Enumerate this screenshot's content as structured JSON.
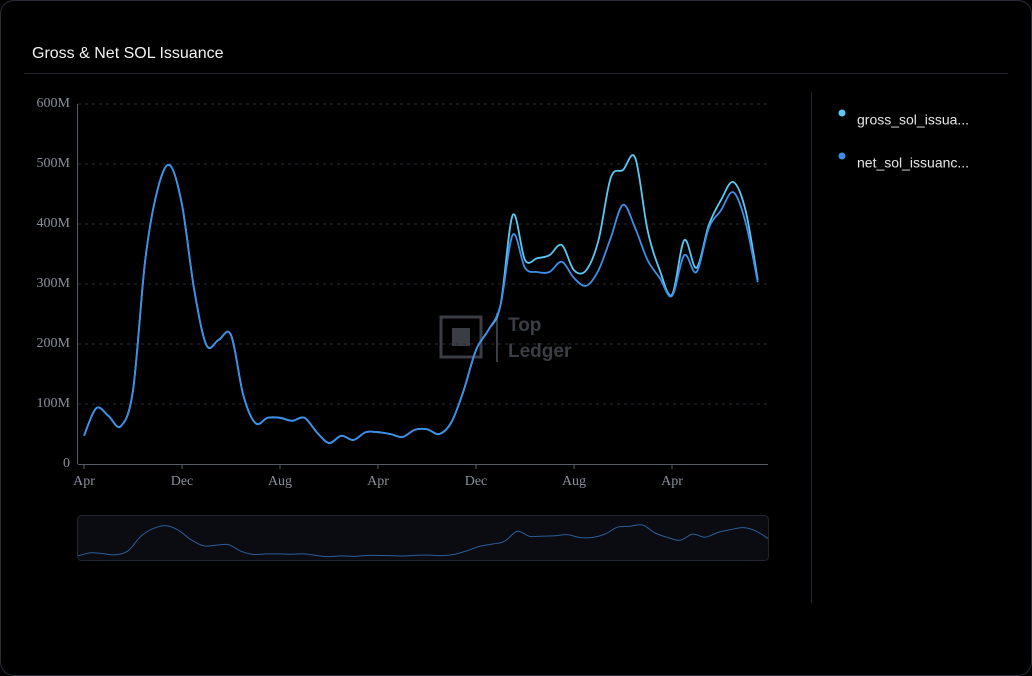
{
  "title": "Gross & Net SOL Issuance",
  "watermark": [
    "Top",
    "Ledger"
  ],
  "chart_data": {
    "type": "line",
    "categories": [
      "Apr",
      null,
      null,
      null,
      null,
      null,
      null,
      null,
      "Dec",
      null,
      null,
      null,
      null,
      null,
      null,
      null,
      "Aug",
      null,
      null,
      null,
      null,
      null,
      null,
      null,
      "Apr",
      null,
      null,
      null,
      null,
      null,
      null,
      null,
      "Dec",
      null,
      null,
      null,
      null,
      null,
      null,
      null,
      "Aug",
      null,
      null,
      null,
      null,
      null,
      null,
      null,
      "Apr",
      null,
      null,
      null,
      null,
      null,
      null,
      null
    ],
    "series": [
      {
        "name": "gross_sol_issua...",
        "color": "#5cc8f2",
        "values": [
          47000000,
          93000000,
          80000000,
          63000000,
          123000000,
          340000000,
          457000000,
          498000000,
          432000000,
          290000000,
          198000000,
          207000000,
          215000000,
          115000000,
          68000000,
          77000000,
          77000000,
          72000000,
          77000000,
          53000000,
          35000000,
          47000000,
          40000000,
          53000000,
          53000000,
          50000000,
          45000000,
          57000000,
          58000000,
          50000000,
          70000000,
          123000000,
          190000000,
          223000000,
          265000000,
          415000000,
          340000000,
          343000000,
          348000000,
          365000000,
          323000000,
          323000000,
          373000000,
          477000000,
          490000000,
          510000000,
          390000000,
          323000000,
          282000000,
          373000000,
          327000000,
          398000000,
          440000000,
          470000000,
          423000000,
          307000000
        ]
      },
      {
        "name": "net_sol_issuanc...",
        "color": "#3d8ee8",
        "values": [
          47000000,
          93000000,
          80000000,
          63000000,
          123000000,
          340000000,
          457000000,
          498000000,
          432000000,
          290000000,
          198000000,
          207000000,
          215000000,
          115000000,
          68000000,
          77000000,
          77000000,
          72000000,
          77000000,
          53000000,
          35000000,
          47000000,
          40000000,
          53000000,
          53000000,
          50000000,
          45000000,
          57000000,
          58000000,
          50000000,
          70000000,
          123000000,
          190000000,
          223000000,
          265000000,
          382000000,
          327000000,
          320000000,
          320000000,
          337000000,
          310000000,
          297000000,
          323000000,
          377000000,
          432000000,
          393000000,
          340000000,
          310000000,
          280000000,
          348000000,
          320000000,
          393000000,
          423000000,
          453000000,
          403000000,
          303000000
        ]
      }
    ],
    "ylim": [
      0,
      600000000
    ],
    "yticks": [
      0,
      {
        "value": 100000000,
        "label": "100M"
      },
      {
        "value": 200000000,
        "label": "200M"
      },
      {
        "value": 300000000,
        "label": "300M"
      },
      {
        "value": 400000000,
        "label": "400M"
      },
      {
        "value": 500000000,
        "label": "500M"
      },
      {
        "value": 600000000,
        "label": "600M"
      }
    ],
    "grid": true
  }
}
